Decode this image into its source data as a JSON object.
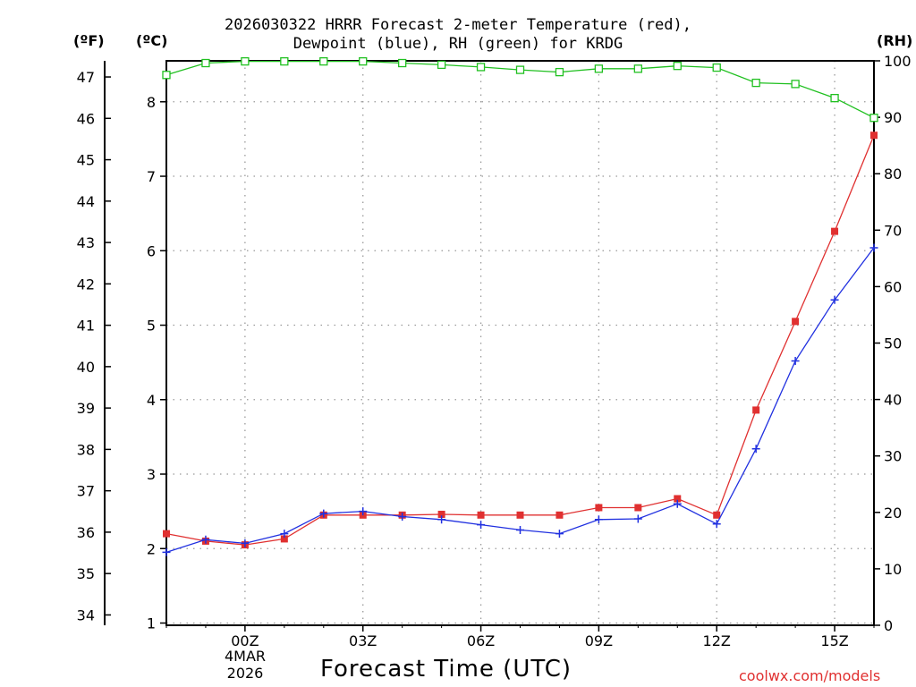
{
  "header": {
    "title_line1": "2026030322 HRRR Forecast 2-meter Temperature (red),",
    "title_line2": "Dewpoint (blue), RH (green) for KRDG",
    "unit_f": "(ºF)",
    "unit_c": "(ºC)",
    "unit_rh": "(RH)"
  },
  "footer": {
    "xlabel": "Forecast Time (UTC)",
    "credit": "coolwx.com/models",
    "date_line1": "4MAR",
    "date_line2": "2026"
  },
  "colors": {
    "temperature": "#e03030",
    "dewpoint": "#2030e0",
    "rh": "#20c020",
    "grid": "#999999"
  },
  "chart_data": {
    "type": "line",
    "title": "2026030322 HRRR Forecast 2-meter Temperature (red), Dewpoint (blue), RH (green) for KRDG",
    "xlabel": "Forecast Time (UTC)",
    "x": [
      22,
      23,
      24,
      25,
      26,
      27,
      28,
      29,
      30,
      31,
      32,
      33,
      34,
      35,
      36,
      37,
      38,
      39,
      40
    ],
    "x_unit": "hours since 2026-03-03 00Z",
    "xlim": [
      22,
      40
    ],
    "x_ticks": [
      {
        "value": 24,
        "label": "00Z"
      },
      {
        "value": 27,
        "label": "03Z"
      },
      {
        "value": 30,
        "label": "06Z"
      },
      {
        "value": 33,
        "label": "09Z"
      },
      {
        "value": 36,
        "label": "12Z"
      },
      {
        "value": 39,
        "label": "15Z"
      }
    ],
    "y_left_celsius": {
      "label": "(ºC)",
      "lim": [
        0.97,
        8.55
      ],
      "ticks": [
        1,
        2,
        3,
        4,
        5,
        6,
        7,
        8
      ]
    },
    "y_left_fahrenheit": {
      "label": "(ºF)",
      "lim": [
        33.75,
        47.39
      ],
      "ticks": [
        34,
        35,
        36,
        37,
        38,
        39,
        40,
        41,
        42,
        43,
        44,
        45,
        46,
        47
      ]
    },
    "y_right_rh": {
      "label": "(RH)",
      "lim": [
        0,
        100
      ],
      "ticks": [
        0,
        10,
        20,
        30,
        40,
        50,
        60,
        70,
        80,
        90,
        100
      ]
    },
    "grid": true,
    "series": [
      {
        "name": "2-meter Temperature",
        "axis": "celsius",
        "color": "#e03030",
        "marker": "filled-square",
        "values": [
          2.2,
          2.1,
          2.05,
          2.13,
          2.45,
          2.45,
          2.45,
          2.46,
          2.45,
          2.45,
          2.45,
          2.55,
          2.55,
          2.67,
          2.45,
          3.86,
          5.05,
          6.26,
          7.55
        ]
      },
      {
        "name": "Dewpoint",
        "axis": "celsius",
        "color": "#2030e0",
        "marker": "plus",
        "values": [
          1.95,
          2.12,
          2.07,
          2.2,
          2.47,
          2.5,
          2.43,
          2.39,
          2.32,
          2.25,
          2.2,
          2.39,
          2.4,
          2.6,
          2.33,
          3.34,
          4.52,
          5.34,
          6.04
        ]
      },
      {
        "name": "RH",
        "axis": "rh",
        "color": "#20c020",
        "marker": "open-square",
        "values": [
          97.5,
          99.6,
          99.9,
          99.9,
          99.9,
          99.9,
          99.6,
          99.3,
          98.9,
          98.4,
          98.0,
          98.6,
          98.6,
          99.1,
          98.8,
          96.1,
          95.9,
          93.4,
          89.9
        ]
      }
    ]
  }
}
